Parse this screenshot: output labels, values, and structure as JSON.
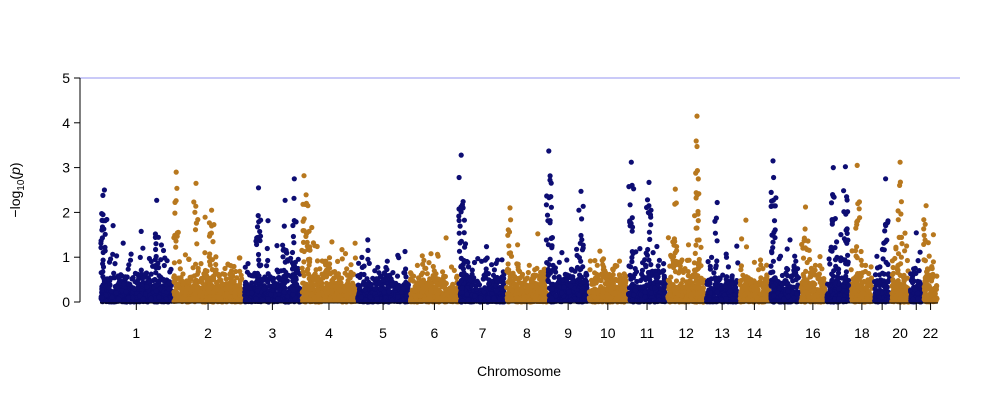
{
  "chart_data": {
    "type": "scatter",
    "subtype": "manhattan",
    "title": "",
    "xlabel": "Chromosome",
    "ylabel": "-log10(p)",
    "ylabel_parts": {
      "prefix": "−log",
      "sub": "10",
      "mid": "(",
      "var": "p",
      "suffix": ")"
    },
    "ylim": [
      0,
      5
    ],
    "yticks": [
      "0",
      "1",
      "2",
      "3",
      "4",
      "5"
    ],
    "threshold": {
      "value": 5,
      "color": "#b8b8f5"
    },
    "colors": [
      "#0d0d73",
      "#b8781e"
    ],
    "grid": false,
    "legend": "none",
    "chromosomes": [
      "1",
      "2",
      "3",
      "4",
      "5",
      "6",
      "7",
      "8",
      "9",
      "10",
      "11",
      "12",
      "13",
      "14",
      "15",
      "16",
      "17",
      "18",
      "19",
      "20",
      "21",
      "22"
    ],
    "xtick_labels": [
      "1",
      "2",
      "3",
      "4",
      "5",
      "6",
      "7",
      "8",
      "9",
      "10",
      "11",
      "12",
      "13",
      "14",
      "",
      "16",
      "",
      "18",
      "",
      "20",
      "",
      "22"
    ],
    "chrom_sizes": [
      249,
      243,
      198,
      190,
      181,
      171,
      159,
      145,
      138,
      134,
      135,
      133,
      114,
      107,
      102,
      90,
      83,
      80,
      59,
      64,
      47,
      51
    ],
    "notable_points": [
      {
        "chrom": "1",
        "pos": 0.06,
        "y": 2.5
      },
      {
        "chrom": "1",
        "pos": 0.04,
        "y": 2.38
      },
      {
        "chrom": "1",
        "pos": 0.78,
        "y": 2.27
      },
      {
        "chrom": "2",
        "pos": 0.05,
        "y": 2.9
      },
      {
        "chrom": "2",
        "pos": 0.33,
        "y": 2.65
      },
      {
        "chrom": "2",
        "pos": 0.55,
        "y": 2.05
      },
      {
        "chrom": "3",
        "pos": 0.26,
        "y": 2.55
      },
      {
        "chrom": "3",
        "pos": 0.88,
        "y": 2.75
      },
      {
        "chrom": "3",
        "pos": 0.72,
        "y": 2.27
      },
      {
        "chrom": "4",
        "pos": 0.05,
        "y": 2.82
      },
      {
        "chrom": "4",
        "pos": 0.12,
        "y": 2.15
      },
      {
        "chrom": "7",
        "pos": 0.04,
        "y": 3.28
      },
      {
        "chrom": "7",
        "pos": 0.08,
        "y": 2.1
      },
      {
        "chrom": "8",
        "pos": 0.1,
        "y": 2.1
      },
      {
        "chrom": "9",
        "pos": 0.02,
        "y": 3.37
      },
      {
        "chrom": "9",
        "pos": 0.05,
        "y": 2.72
      },
      {
        "chrom": "9",
        "pos": 0.82,
        "y": 2.47
      },
      {
        "chrom": "11",
        "pos": 0.1,
        "y": 3.12
      },
      {
        "chrom": "11",
        "pos": 0.55,
        "y": 2.67
      },
      {
        "chrom": "12",
        "pos": 0.22,
        "y": 2.52
      },
      {
        "chrom": "12",
        "pos": 0.78,
        "y": 4.15
      },
      {
        "chrom": "12",
        "pos": 0.78,
        "y": 3.47
      },
      {
        "chrom": "13",
        "pos": 0.35,
        "y": 2.22
      },
      {
        "chrom": "15",
        "pos": 0.1,
        "y": 3.15
      },
      {
        "chrom": "15",
        "pos": 0.12,
        "y": 2.78
      },
      {
        "chrom": "16",
        "pos": 0.22,
        "y": 2.12
      },
      {
        "chrom": "17",
        "pos": 0.3,
        "y": 3.0
      },
      {
        "chrom": "17",
        "pos": 0.8,
        "y": 3.02
      },
      {
        "chrom": "17",
        "pos": 0.85,
        "y": 2.35
      },
      {
        "chrom": "18",
        "pos": 0.3,
        "y": 3.05
      },
      {
        "chrom": "19",
        "pos": 0.7,
        "y": 2.75
      },
      {
        "chrom": "20",
        "pos": 0.5,
        "y": 3.12
      },
      {
        "chrom": "22",
        "pos": 0.2,
        "y": 2.15
      }
    ]
  }
}
